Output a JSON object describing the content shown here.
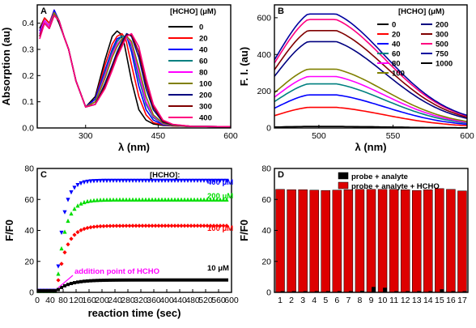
{
  "figure": {
    "panels": [
      "A",
      "B",
      "C",
      "D"
    ]
  },
  "chart_data": [
    {
      "panel": "A",
      "type": "line",
      "xlabel": "λ (nm)",
      "ylabel": "Absorption (au)",
      "xlim": [
        200,
        600
      ],
      "ylim": [
        0,
        0.47
      ],
      "xticks": [
        300,
        450,
        600
      ],
      "yticks": [
        0.0,
        0.1,
        0.2,
        0.3,
        0.4
      ],
      "legend_title": "[HCHO] (μM)",
      "legend_position": "right",
      "series": [
        {
          "name": "0",
          "color": "#000000",
          "values": {
            "x": [
              205,
              215,
              225,
              235,
              245,
              255,
              265,
              280,
              300,
              320,
              340,
              355,
              365,
              372,
              380,
              395,
              410,
              425,
              440,
              460,
              480,
              520,
              600
            ],
            "y": [
              0.38,
              0.42,
              0.4,
              0.44,
              0.4,
              0.35,
              0.3,
              0.18,
              0.08,
              0.12,
              0.26,
              0.35,
              0.37,
              0.36,
              0.32,
              0.18,
              0.07,
              0.03,
              0.015,
              0.01,
              0.008,
              0.006,
              0.005
            ]
          }
        },
        {
          "name": "20",
          "color": "#ff0000",
          "values": {
            "x": [
              205,
              215,
              225,
              235,
              245,
              255,
              265,
              280,
              300,
              320,
              340,
              355,
              365,
              375,
              383,
              395,
              410,
              425,
              440,
              460,
              480,
              520,
              600
            ],
            "y": [
              0.37,
              0.42,
              0.4,
              0.45,
              0.41,
              0.35,
              0.3,
              0.18,
              0.08,
              0.11,
              0.24,
              0.32,
              0.35,
              0.36,
              0.34,
              0.24,
              0.12,
              0.05,
              0.02,
              0.012,
              0.008,
              0.006,
              0.005
            ]
          }
        },
        {
          "name": "40",
          "color": "#0000ff",
          "values": {
            "x": [
              205,
              215,
              225,
              235,
              245,
              255,
              265,
              280,
              300,
              320,
              340,
              355,
              365,
              375,
              385,
              395,
              410,
              425,
              440,
              460,
              480,
              520,
              600
            ],
            "y": [
              0.37,
              0.41,
              0.39,
              0.45,
              0.41,
              0.35,
              0.3,
              0.18,
              0.08,
              0.11,
              0.22,
              0.3,
              0.34,
              0.35,
              0.35,
              0.29,
              0.16,
              0.07,
              0.03,
              0.013,
              0.009,
              0.006,
              0.005
            ]
          }
        },
        {
          "name": "60",
          "color": "#008080",
          "values": {
            "x": [
              205,
              215,
              225,
              235,
              245,
              255,
              265,
              280,
              300,
              320,
              340,
              355,
              365,
              375,
              385,
              395,
              410,
              425,
              440,
              460,
              480,
              520,
              600
            ],
            "y": [
              0.36,
              0.41,
              0.39,
              0.44,
              0.41,
              0.35,
              0.3,
              0.18,
              0.08,
              0.1,
              0.21,
              0.29,
              0.33,
              0.35,
              0.35,
              0.31,
              0.19,
              0.09,
              0.04,
              0.015,
              0.01,
              0.006,
              0.005
            ]
          }
        },
        {
          "name": "80",
          "color": "#ff00ff",
          "values": {
            "x": [
              205,
              215,
              225,
              235,
              245,
              255,
              265,
              280,
              300,
              320,
              340,
              355,
              365,
              375,
              385,
              395,
              410,
              425,
              440,
              460,
              480,
              520,
              600
            ],
            "y": [
              0.36,
              0.41,
              0.39,
              0.44,
              0.41,
              0.35,
              0.3,
              0.18,
              0.08,
              0.1,
              0.2,
              0.28,
              0.32,
              0.34,
              0.35,
              0.32,
              0.21,
              0.1,
              0.045,
              0.016,
              0.01,
              0.006,
              0.005
            ]
          }
        },
        {
          "name": "100",
          "color": "#808000",
          "values": {
            "x": [
              205,
              215,
              225,
              235,
              245,
              255,
              265,
              280,
              300,
              320,
              340,
              355,
              365,
              375,
              385,
              395,
              410,
              425,
              440,
              460,
              480,
              520,
              600
            ],
            "y": [
              0.35,
              0.4,
              0.38,
              0.44,
              0.41,
              0.35,
              0.3,
              0.18,
              0.08,
              0.1,
              0.19,
              0.27,
              0.31,
              0.34,
              0.35,
              0.33,
              0.23,
              0.12,
              0.05,
              0.018,
              0.01,
              0.006,
              0.005
            ]
          }
        },
        {
          "name": "200",
          "color": "#000080",
          "values": {
            "x": [
              205,
              215,
              225,
              235,
              245,
              255,
              265,
              280,
              300,
              320,
              340,
              355,
              365,
              375,
              385,
              395,
              410,
              425,
              440,
              460,
              480,
              520,
              600
            ],
            "y": [
              0.35,
              0.4,
              0.38,
              0.43,
              0.41,
              0.35,
              0.3,
              0.18,
              0.08,
              0.09,
              0.17,
              0.24,
              0.29,
              0.33,
              0.36,
              0.35,
              0.27,
              0.15,
              0.07,
              0.022,
              0.012,
              0.006,
              0.005
            ]
          }
        },
        {
          "name": "300",
          "color": "#800000",
          "values": {
            "x": [
              205,
              215,
              225,
              235,
              245,
              255,
              265,
              280,
              300,
              320,
              340,
              355,
              365,
              375,
              385,
              395,
              410,
              425,
              440,
              460,
              480,
              520,
              600
            ],
            "y": [
              0.35,
              0.4,
              0.38,
              0.43,
              0.41,
              0.35,
              0.3,
              0.18,
              0.08,
              0.09,
              0.16,
              0.23,
              0.28,
              0.32,
              0.355,
              0.355,
              0.29,
              0.17,
              0.08,
              0.025,
              0.013,
              0.006,
              0.005
            ]
          }
        },
        {
          "name": "400",
          "color": "#ff0080",
          "values": {
            "x": [
              205,
              215,
              225,
              235,
              245,
              255,
              265,
              280,
              300,
              320,
              340,
              355,
              365,
              375,
              385,
              395,
              410,
              425,
              440,
              460,
              480,
              520,
              600
            ],
            "y": [
              0.34,
              0.4,
              0.38,
              0.43,
              0.41,
              0.35,
              0.3,
              0.18,
              0.08,
              0.09,
              0.15,
              0.22,
              0.27,
              0.31,
              0.35,
              0.36,
              0.31,
              0.19,
              0.09,
              0.03,
              0.014,
              0.006,
              0.005
            ]
          }
        }
      ]
    },
    {
      "panel": "B",
      "type": "line",
      "xlabel": "λ (nm)",
      "ylabel": "F. I. (au)",
      "xlim": [
        470,
        600
      ],
      "ylim": [
        0,
        670
      ],
      "xticks": [
        500,
        550,
        600
      ],
      "yticks": [
        0,
        200,
        400,
        600
      ],
      "legend_title": "[HCHO] (μM)",
      "legend_position": "top-right",
      "peak_x": 500,
      "series": [
        {
          "name": "0",
          "color": "#000000",
          "peak": 8
        },
        {
          "name": "20",
          "color": "#ff0000",
          "peak": 112
        },
        {
          "name": "40",
          "color": "#0000ff",
          "peak": 180
        },
        {
          "name": "60",
          "color": "#008080",
          "peak": 240
        },
        {
          "name": "80",
          "color": "#ff00ff",
          "peak": 280
        },
        {
          "name": "100",
          "color": "#808000",
          "peak": 320
        },
        {
          "name": "200",
          "color": "#000080",
          "peak": 470
        },
        {
          "name": "300",
          "color": "#800000",
          "peak": 530
        },
        {
          "name": "500",
          "color": "#ff0080",
          "peak": 590
        },
        {
          "name": "750",
          "color": "#0000a0",
          "peak": 620
        },
        {
          "name": "1000",
          "color": "#000000",
          "peak": 8
        }
      ]
    },
    {
      "panel": "C",
      "type": "scatter",
      "xlabel": "reaction time (sec)",
      "ylabel": "F/F0",
      "xlim": [
        0,
        600
      ],
      "ylim": [
        0,
        80
      ],
      "xticks": [
        0,
        40,
        80,
        120,
        160,
        200,
        240,
        280,
        320,
        360,
        400,
        440,
        480,
        520,
        560,
        600
      ],
      "yticks": [
        0,
        20,
        40,
        60,
        80
      ],
      "legend_title": "[HCHO]:",
      "addition_time": 60,
      "annotation": "addition point of HCHO",
      "series": [
        {
          "name": "400 μM",
          "color": "#0000ff",
          "marker": "triangle-down",
          "plateau": 72,
          "tau": 20
        },
        {
          "name": "200 μM",
          "color": "#00dd00",
          "marker": "triangle-up",
          "plateau": 60,
          "tau": 24
        },
        {
          "name": "100 μM",
          "color": "#ff0000",
          "marker": "diamond",
          "plateau": 43,
          "tau": 28
        },
        {
          "name": "10 μM",
          "color": "#000000",
          "marker": "square",
          "plateau": 8,
          "tau": 40
        }
      ]
    },
    {
      "panel": "D",
      "type": "bar",
      "xlabel": "",
      "ylabel": "F/F0",
      "ylim": [
        0,
        80
      ],
      "yticks": [
        0,
        20,
        40,
        60,
        80
      ],
      "categories": [
        "1",
        "2",
        "3",
        "4",
        "5",
        "6",
        "7",
        "8",
        "9",
        "10",
        "11",
        "12",
        "13",
        "14",
        "15",
        "16",
        "17"
      ],
      "legend_position": "top",
      "series": [
        {
          "name": "probe + analyte",
          "color": "#000000",
          "values": [
            0.8,
            0.8,
            0.8,
            0.8,
            0.8,
            0.8,
            0.8,
            1.0,
            3.5,
            3.0,
            0.8,
            0.8,
            0.8,
            0.8,
            2.0,
            0.8,
            0.8
          ]
        },
        {
          "name": "probe + analyte + HCHO",
          "color": "#dd0000",
          "values": [
            66.5,
            66.3,
            66.3,
            66.0,
            65.8,
            66.0,
            66.3,
            66.5,
            66.5,
            66.5,
            66.5,
            66.3,
            65.8,
            66.3,
            67.0,
            66.5,
            65.5
          ]
        }
      ]
    }
  ]
}
